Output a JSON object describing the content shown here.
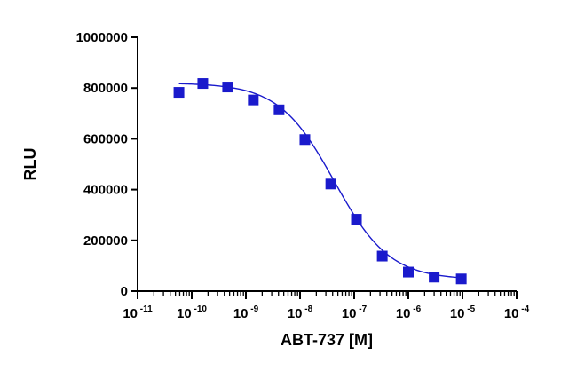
{
  "chart_data": {
    "type": "scatter",
    "title": "",
    "xlabel": "ABT-737 [M]",
    "ylabel": "RLU",
    "x_scale": "log",
    "xlim": [
      1e-11,
      0.0001
    ],
    "ylim": [
      0,
      1000000
    ],
    "x_ticks": [
      {
        "base": "10",
        "exp": "-11",
        "value": 1e-11
      },
      {
        "base": "10",
        "exp": "-10",
        "value": 1e-10
      },
      {
        "base": "10",
        "exp": "-9",
        "value": 1e-09
      },
      {
        "base": "10",
        "exp": "-8",
        "value": 1e-08
      },
      {
        "base": "10",
        "exp": "-7",
        "value": 1e-07
      },
      {
        "base": "10",
        "exp": "-6",
        "value": 1e-06
      },
      {
        "base": "10",
        "exp": "-5",
        "value": 1e-05
      },
      {
        "base": "10",
        "exp": "-4",
        "value": 0.0001
      }
    ],
    "y_ticks": [
      {
        "label": "0",
        "value": 0
      },
      {
        "label": "200000",
        "value": 200000
      },
      {
        "label": "400000",
        "value": 400000
      },
      {
        "label": "600000",
        "value": 600000
      },
      {
        "label": "800000",
        "value": 800000
      },
      {
        "label": "1000000",
        "value": 1000000
      }
    ],
    "grid": false,
    "series": [
      {
        "marker": "square",
        "color": "#1a1acc",
        "points": [
          {
            "x": 5.8e-11,
            "y": 783000
          },
          {
            "x": 1.6e-10,
            "y": 818000
          },
          {
            "x": 4.6e-10,
            "y": 804000
          },
          {
            "x": 1.37e-09,
            "y": 753000
          },
          {
            "x": 4.1e-09,
            "y": 714000
          },
          {
            "x": 1.23e-08,
            "y": 597000
          },
          {
            "x": 3.7e-08,
            "y": 422000
          },
          {
            "x": 1.1e-07,
            "y": 283000
          },
          {
            "x": 3.3e-07,
            "y": 138000
          },
          {
            "x": 1e-06,
            "y": 75000
          },
          {
            "x": 3e-06,
            "y": 55000
          },
          {
            "x": 9.5e-06,
            "y": 48000
          }
        ],
        "fit": {
          "type": "4PL",
          "top": 820000,
          "bottom": 45000,
          "ec50": 4.3e-08,
          "hill": 0.85,
          "x_range": [
            5.8e-11,
            9.5e-06
          ]
        }
      }
    ]
  }
}
